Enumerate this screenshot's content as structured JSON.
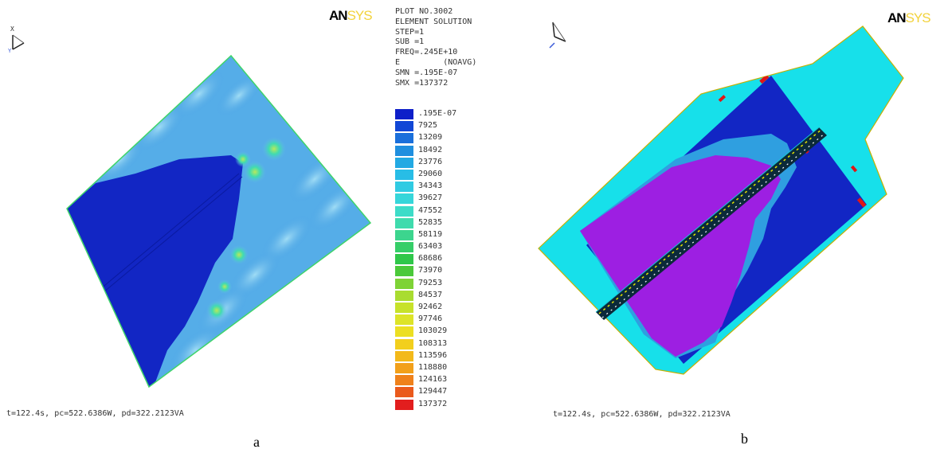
{
  "panel_a": {
    "logo": {
      "an": "AN",
      "sys": "SYS"
    },
    "axes": {
      "x": "X",
      "y": "Y"
    },
    "header_lines": [
      "PLOT NO.3002",
      "ELEMENT SOLUTION",
      "STEP=1",
      "SUB =1",
      "FREQ=.245E+10",
      "E         (NOAVG)",
      "SMN =.195E-07",
      "SMX =137372"
    ],
    "legend": [
      {
        "label": ".195E-07",
        "color": "#0e1fc9"
      },
      {
        "label": "7925",
        "color": "#1147d6"
      },
      {
        "label": "13209",
        "color": "#1a6fdb"
      },
      {
        "label": "18492",
        "color": "#1f8fdf"
      },
      {
        "label": "23776",
        "color": "#22a9e3"
      },
      {
        "label": "29060",
        "color": "#28bde6"
      },
      {
        "label": "34343",
        "color": "#30cbe3"
      },
      {
        "label": "39627",
        "color": "#36d6da"
      },
      {
        "label": "47552",
        "color": "#3ddcc8"
      },
      {
        "label": "52835",
        "color": "#3fdbad"
      },
      {
        "label": "58119",
        "color": "#3cd58e"
      },
      {
        "label": "63403",
        "color": "#35ce68"
      },
      {
        "label": "68686",
        "color": "#2fc74a"
      },
      {
        "label": "73970",
        "color": "#4bc93a"
      },
      {
        "label": "79253",
        "color": "#7ed336"
      },
      {
        "label": "84537",
        "color": "#a9dc30"
      },
      {
        "label": "92462",
        "color": "#c7e22a"
      },
      {
        "label": "97746",
        "color": "#dde428"
      },
      {
        "label": "103029",
        "color": "#ecdf22"
      },
      {
        "label": "108313",
        "color": "#f2cf1d"
      },
      {
        "label": "113596",
        "color": "#f3b91a"
      },
      {
        "label": "118880",
        "color": "#f2a01a"
      },
      {
        "label": "124163",
        "color": "#ef811b"
      },
      {
        "label": "129447",
        "color": "#ea5a1c"
      },
      {
        "label": "137372",
        "color": "#e21e1e"
      }
    ],
    "footer": "t=122.4s, pc=522.6386W, pd=322.2123VA",
    "caption": "a"
  },
  "panel_b": {
    "logo": {
      "an": "AN",
      "sys": "SYS"
    },
    "footer": "t=122.4s, pc=522.6386W, pd=322.2123VA",
    "caption": "b"
  },
  "colors": {
    "field_blue": "#1226c4",
    "ripple_cyan": "#63b8ea",
    "hotspot_green": "#9ddc5a",
    "cyan_region": "#17e0ea",
    "purple_region": "#9d1fe2",
    "red_marker": "#e01616"
  }
}
